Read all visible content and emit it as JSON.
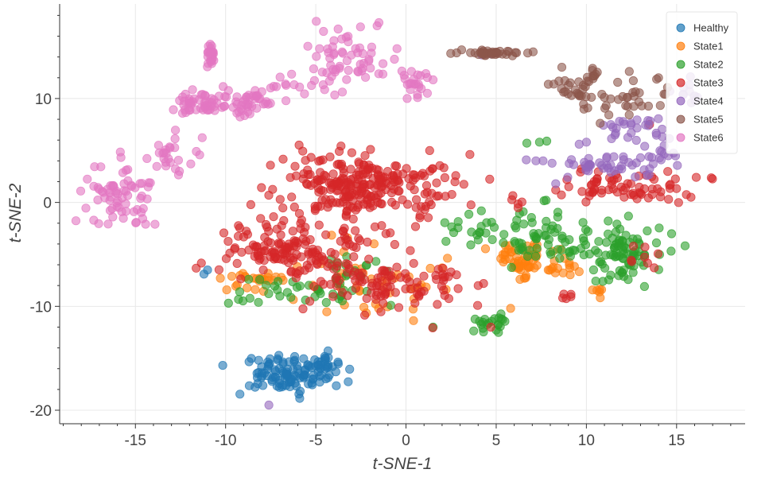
{
  "chart_data": {
    "type": "scatter",
    "title": "",
    "xlabel": "t-SNE-1",
    "ylabel": "t-SNE-2",
    "xlim": [
      -19.2,
      18.8
    ],
    "ylim": [
      -21.3,
      19.1
    ],
    "xticks": [
      -15,
      -10,
      -5,
      0,
      5,
      10,
      15
    ],
    "yticks": [
      -20,
      -10,
      0,
      10
    ],
    "xtick_labels": [
      "-15",
      "-10",
      "-5",
      "0",
      "5",
      "10",
      "15"
    ],
    "ytick_labels": [
      "-20",
      "-10",
      "0",
      "10"
    ],
    "x_minor_step": 1,
    "y_minor_step": 2,
    "grid": true,
    "legend_position": "top-right",
    "series": [
      {
        "name": "Healthy",
        "color": "#1f77b4",
        "clusters": [
          {
            "cx": -6.5,
            "cy": -16.5,
            "sx": 2.0,
            "sy": 1.3,
            "n": 110
          },
          {
            "cx": -4.5,
            "cy": -15.5,
            "sx": 0.5,
            "sy": 0.5,
            "n": 18
          }
        ],
        "points": [
          [
            -11.2,
            -6.9
          ],
          [
            -11.0,
            -6.5
          ]
        ]
      },
      {
        "name": "State1",
        "color": "#ff7f0e",
        "clusters": [
          {
            "cx": 6.3,
            "cy": -5.5,
            "sx": 1.1,
            "sy": 1.1,
            "n": 55
          },
          {
            "cx": 8.5,
            "cy": -6.0,
            "sx": 0.8,
            "sy": 0.8,
            "n": 15
          },
          {
            "cx": -8.5,
            "cy": -7.5,
            "sx": 1.5,
            "sy": 0.8,
            "n": 25
          },
          {
            "cx": -2.0,
            "cy": -8.0,
            "sx": 2.8,
            "sy": 2.5,
            "n": 45
          },
          {
            "cx": 10.5,
            "cy": -8.5,
            "sx": 0.6,
            "sy": 0.6,
            "n": 6
          }
        ],
        "points": [
          [
            5.8,
            -10.2
          ],
          [
            2.0,
            -6.3
          ]
        ]
      },
      {
        "name": "State2",
        "color": "#2ca02c",
        "clusters": [
          {
            "cx": 7.5,
            "cy": -3.5,
            "sx": 2.2,
            "sy": 2.0,
            "n": 70
          },
          {
            "cx": 12.0,
            "cy": -5.0,
            "sx": 1.7,
            "sy": 2.2,
            "n": 85
          },
          {
            "cx": 4.8,
            "cy": -11.5,
            "sx": 0.7,
            "sy": 0.6,
            "n": 22
          },
          {
            "cx": 3.5,
            "cy": -3.0,
            "sx": 1.3,
            "sy": 1.0,
            "n": 15
          },
          {
            "cx": -5.5,
            "cy": -8.5,
            "sx": 2.8,
            "sy": 1.0,
            "n": 40
          },
          {
            "cx": -3.0,
            "cy": -6.0,
            "sx": 1.5,
            "sy": 1.0,
            "n": 15
          }
        ],
        "points": [
          [
            1.5,
            -12.0
          ],
          [
            7.4,
            5.8
          ],
          [
            7.8,
            5.9
          ],
          [
            6.7,
            5.7
          ]
        ]
      },
      {
        "name": "State3",
        "color": "#d62728",
        "clusters": [
          {
            "cx": -2.5,
            "cy": 1.5,
            "sx": 3.5,
            "sy": 2.2,
            "n": 260
          },
          {
            "cx": -6.5,
            "cy": -4.5,
            "sx": 3.0,
            "sy": 2.2,
            "n": 150
          },
          {
            "cx": -1.5,
            "cy": -8.0,
            "sx": 2.5,
            "sy": 2.0,
            "n": 80
          },
          {
            "cx": 2.2,
            "cy": -7.5,
            "sx": 0.5,
            "sy": 1.3,
            "n": 15
          },
          {
            "cx": 12.5,
            "cy": 1.5,
            "sx": 3.0,
            "sy": 1.0,
            "n": 70
          },
          {
            "cx": 13.0,
            "cy": -5.5,
            "sx": 1.0,
            "sy": 1.0,
            "n": 8
          },
          {
            "cx": 9.0,
            "cy": -9.0,
            "sx": 0.6,
            "sy": 0.6,
            "n": 5
          },
          {
            "cx": 6.0,
            "cy": 0.2,
            "sx": 0.3,
            "sy": 0.6,
            "n": 5
          }
        ],
        "points": [
          [
            4.0,
            -8.0
          ],
          [
            4.3,
            -7.8
          ],
          [
            4.7,
            -12.0
          ],
          [
            15.8,
            0.5
          ],
          [
            13.5,
            7.5
          ]
        ]
      },
      {
        "name": "State4",
        "color": "#9467bd",
        "clusters": [
          {
            "cx": 11.5,
            "cy": 3.5,
            "sx": 2.2,
            "sy": 0.8,
            "n": 45
          },
          {
            "cx": 13.0,
            "cy": 7.0,
            "sx": 1.5,
            "sy": 1.5,
            "n": 30
          },
          {
            "cx": 15.5,
            "cy": 10.5,
            "sx": 0.8,
            "sy": 0.8,
            "n": 12
          },
          {
            "cx": 14.2,
            "cy": 4.3,
            "sx": 0.7,
            "sy": 0.4,
            "n": 8
          }
        ],
        "points": [
          [
            4.2,
            14.2
          ],
          [
            4.7,
            14.3
          ],
          [
            7.2,
            4.0
          ],
          [
            7.6,
            4.0
          ],
          [
            8.3,
            1.8
          ],
          [
            9.6,
            5.6
          ],
          [
            10.0,
            5.8
          ],
          [
            -7.6,
            -19.5
          ]
        ]
      },
      {
        "name": "State5",
        "color": "#8c564b",
        "clusters": [
          {
            "cx": 4.8,
            "cy": 14.4,
            "sx": 1.5,
            "sy": 0.2,
            "n": 40
          },
          {
            "cx": 9.5,
            "cy": 11.0,
            "sx": 1.0,
            "sy": 1.2,
            "n": 25
          },
          {
            "cx": 12.0,
            "cy": 10.0,
            "sx": 1.8,
            "sy": 1.5,
            "n": 35
          },
          {
            "cx": 10.3,
            "cy": 12.5,
            "sx": 0.4,
            "sy": 0.5,
            "n": 8
          }
        ],
        "points": [
          [
            14.0,
            12.0
          ]
        ]
      },
      {
        "name": "State6",
        "color": "#e377c2",
        "clusters": [
          {
            "cx": -15.8,
            "cy": 0.5,
            "sx": 1.3,
            "sy": 2.5,
            "n": 70
          },
          {
            "cx": -11.5,
            "cy": 9.5,
            "sx": 1.2,
            "sy": 0.8,
            "n": 50
          },
          {
            "cx": -8.5,
            "cy": 9.5,
            "sx": 1.5,
            "sy": 1.2,
            "n": 45
          },
          {
            "cx": -10.8,
            "cy": 14.0,
            "sx": 0.15,
            "sy": 1.0,
            "n": 25
          },
          {
            "cx": -3.0,
            "cy": 14.0,
            "sx": 1.8,
            "sy": 1.5,
            "n": 55
          },
          {
            "cx": 0.4,
            "cy": 11.5,
            "sx": 0.6,
            "sy": 1.0,
            "n": 22
          },
          {
            "cx": -13.0,
            "cy": 4.5,
            "sx": 1.0,
            "sy": 1.5,
            "n": 25
          },
          {
            "cx": -6.0,
            "cy": 11.0,
            "sx": 1.5,
            "sy": 1.0,
            "n": 15
          }
        ],
        "points": [
          [
            -1.5,
            17.3
          ],
          [
            -1.6,
            17.0
          ],
          [
            -0.5,
            14.8
          ],
          [
            1.5,
            11.8
          ]
        ]
      }
    ]
  }
}
